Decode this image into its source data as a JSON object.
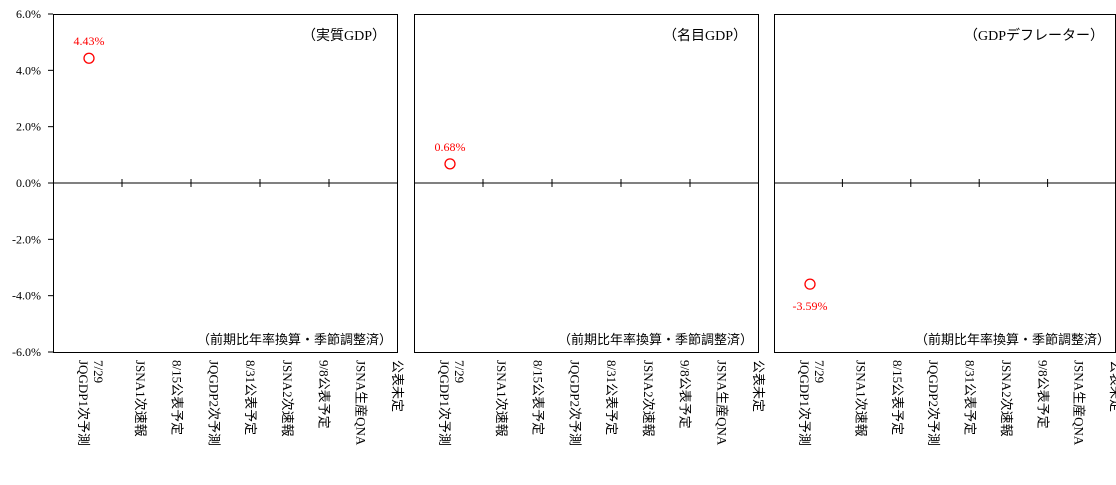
{
  "chart_data": {
    "type": "scatter",
    "y_axis": {
      "ylim": [
        -6.0,
        6.0
      ],
      "ticks": [
        "6.0%",
        "4.0%",
        "2.0%",
        "0.0%",
        "-2.0%",
        "-4.0%",
        "-6.0%"
      ],
      "tick_values": [
        6,
        4,
        2,
        0,
        -2,
        -4,
        -6
      ]
    },
    "categories": [
      "7/29\nJQGDP1次予測",
      "JSNA1次速報",
      "8/15公表予定",
      "JQGDP2次予測",
      "8/31公表予定",
      "JSNA2次速報",
      "9/8公表予定",
      "JSNA生産QNA",
      "公表未定"
    ],
    "category_lines": [
      [
        "7/29",
        "JQGDP1次予測"
      ],
      [
        "JSNA1次速報"
      ],
      [
        "8/15公表予定"
      ],
      [
        "JQGDP2次予測"
      ],
      [
        "8/31公表予定"
      ],
      [
        "JSNA2次速報"
      ],
      [
        "9/8公表予定"
      ],
      [
        "JSNA生産QNA"
      ],
      [
        "公表未定"
      ]
    ],
    "panels": [
      {
        "title": "（実質GDP）",
        "note": "（前期比年率換算・季節調整済）",
        "points": [
          {
            "category_index": 0,
            "value": 4.43,
            "label": "4.43%"
          }
        ]
      },
      {
        "title": "（名目GDP）",
        "note": "（前期比年率換算・季節調整済）",
        "points": [
          {
            "category_index": 0,
            "value": 0.68,
            "label": "0.68%"
          }
        ]
      },
      {
        "title": "（GDPデフレーター）",
        "note": "（前期比年率換算・季節調整済）",
        "points": [
          {
            "category_index": 0,
            "value": -3.59,
            "label": "-3.59%"
          }
        ]
      }
    ],
    "marker_color": "#ff0000",
    "axis_color": "#000000",
    "grid": false,
    "legend": "none"
  }
}
